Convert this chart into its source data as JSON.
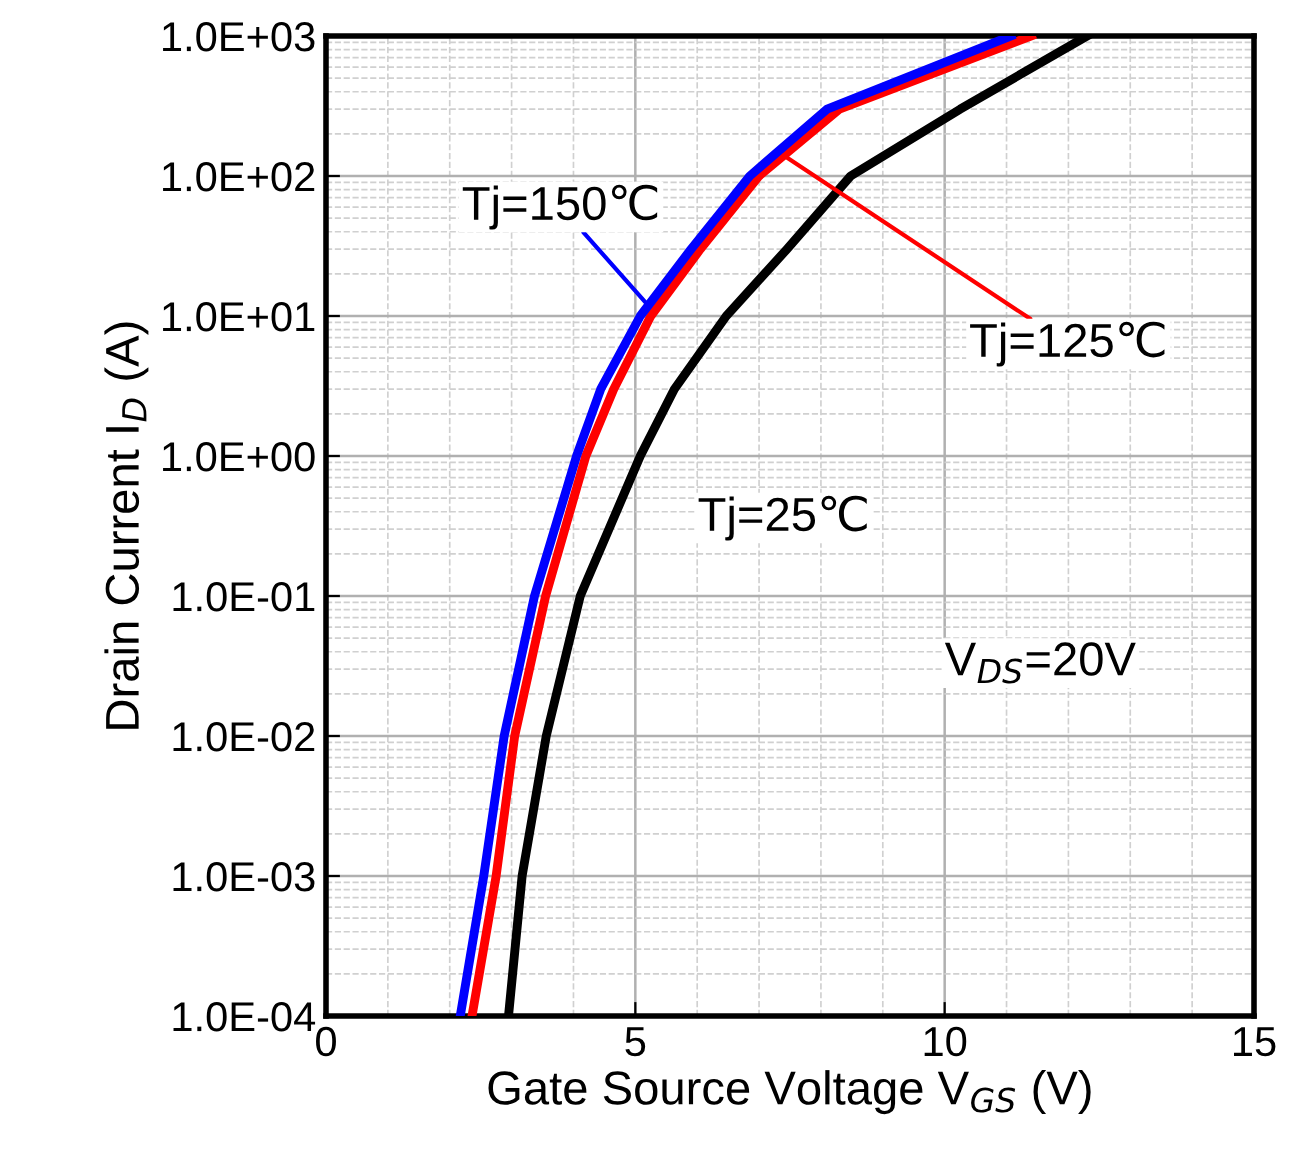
{
  "chart_data": {
    "type": "line",
    "xlabel": "Gate Source Voltage V$_{GS}$ (V)",
    "ylabel": "Drain Current I$_{D}$ (A)",
    "log": "y",
    "grid": true,
    "marker": "none",
    "line_style": "solid",
    "legend": false,
    "xlim": [
      0,
      15
    ],
    "xticks": [
      0,
      5,
      10,
      15
    ],
    "ylim": [
      0.0001,
      1000
    ],
    "yticks": [
      {
        "value": 0.0001,
        "label": "1.0E-04"
      },
      {
        "value": 0.001,
        "label": "1.0E-03"
      },
      {
        "value": 0.01,
        "label": "1.0E-02"
      },
      {
        "value": 0.1,
        "label": "1.0E-01"
      },
      {
        "value": 1,
        "label": "1.0E+00"
      },
      {
        "value": 10,
        "label": "1.0E+01"
      },
      {
        "value": 100,
        "label": "1.0E+02"
      },
      {
        "value": 1000,
        "label": "1.0E+03"
      }
    ],
    "series": [
      {
        "color": "#0000ff",
        "x": [
          2.17,
          2.55,
          2.88,
          3.37,
          4.05,
          4.44,
          5.08,
          5.9,
          6.85,
          8.1,
          11.07
        ],
        "values": [
          0.0001,
          0.001,
          0.01,
          0.1,
          1,
          3,
          10,
          30,
          100,
          300,
          1000
        ]
      },
      {
        "color": "#ff0000",
        "x": [
          2.36,
          2.75,
          3.05,
          3.55,
          4.2,
          4.65,
          5.25,
          6.05,
          7.0,
          8.3,
          11.4
        ],
        "values": [
          0.0001,
          0.001,
          0.01,
          0.1,
          1,
          3,
          10,
          30,
          100,
          300,
          1000
        ]
      },
      {
        "color": "#000000",
        "x": [
          2.95,
          3.17,
          3.56,
          4.11,
          5.08,
          5.63,
          6.47,
          7.45,
          8.48,
          10.25,
          12.3
        ],
        "values": [
          0.0001,
          0.001,
          0.01,
          0.1,
          1,
          3,
          10,
          30,
          100,
          300,
          1000
        ]
      }
    ],
    "annotations": [
      {
        "text": "Tj=150℃",
        "x": 5.2,
        "y": 12
      },
      {
        "text": "Tj=125℃",
        "x": 7.4,
        "y": 140
      },
      {
        "text": "Tj=25℃",
        "x": 5.4,
        "y": 2
      },
      "V$_{DS}$=20V"
    ]
  }
}
